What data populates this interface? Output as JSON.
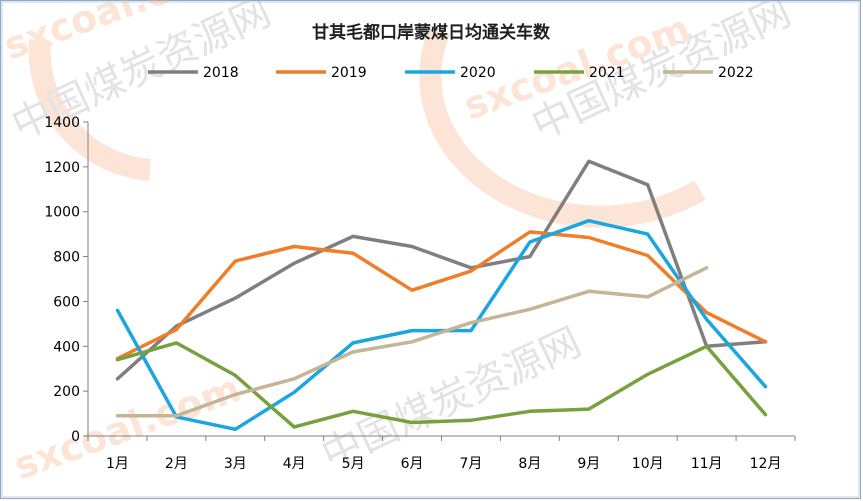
{
  "chart_data": {
    "type": "line",
    "title": "甘其毛都口岸蒙煤日均通关车数",
    "categories": [
      "1月",
      "2月",
      "3月",
      "4月",
      "5月",
      "6月",
      "7月",
      "8月",
      "9月",
      "10月",
      "11月",
      "12月"
    ],
    "ylim": [
      0,
      1400
    ],
    "yticks": [
      0,
      200,
      400,
      600,
      800,
      1000,
      1200,
      1400
    ],
    "grid": false,
    "legend": "top",
    "series": [
      {
        "name": "2018",
        "color": "#7f7f7f",
        "values": [
          255,
          490,
          615,
          770,
          890,
          845,
          750,
          800,
          1225,
          1120,
          400,
          420
        ]
      },
      {
        "name": "2019",
        "color": "#f07d28",
        "values": [
          345,
          475,
          780,
          845,
          815,
          650,
          735,
          910,
          885,
          805,
          550,
          420
        ]
      },
      {
        "name": "2020",
        "color": "#1aa6e0",
        "values": [
          560,
          85,
          30,
          195,
          415,
          470,
          470,
          865,
          960,
          900,
          520,
          220
        ]
      },
      {
        "name": "2021",
        "color": "#77a13f",
        "values": [
          340,
          415,
          270,
          40,
          110,
          60,
          70,
          110,
          120,
          275,
          400,
          95
        ]
      },
      {
        "name": "2022",
        "color": "#c5b597",
        "values": [
          90,
          90,
          185,
          255,
          375,
          420,
          505,
          565,
          645,
          620,
          750,
          null
        ]
      }
    ]
  },
  "watermark": {
    "text": "中国煤炭资源网",
    "logo_text": "sxcoal.com"
  }
}
